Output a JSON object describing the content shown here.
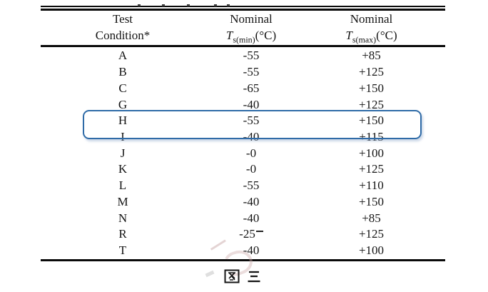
{
  "table": {
    "header": {
      "col1": {
        "line1": "Test",
        "line2": "Condition*"
      },
      "col2": {
        "line1": "Nominal",
        "symbol": "T",
        "subscript": "s(min)",
        "unit": "(°C)"
      },
      "col3": {
        "line1": "Nominal",
        "symbol": "T",
        "subscript": "s(max)",
        "unit": "(°C)"
      }
    },
    "rows": [
      {
        "condition": "A",
        "min": "-55",
        "max": "+85"
      },
      {
        "condition": "B",
        "min": "-55",
        "max": "+125"
      },
      {
        "condition": "C",
        "min": "-65",
        "max": "+150"
      },
      {
        "condition": "G",
        "min": "-40",
        "max": "+125"
      },
      {
        "condition": "H",
        "min": "-55",
        "max": "+150",
        "highlighted": true
      },
      {
        "condition": "I",
        "min": "-40",
        "max": "+115"
      },
      {
        "condition": "J",
        "min": "-0",
        "max": "+100"
      },
      {
        "condition": "K",
        "min": "-0",
        "max": "+125"
      },
      {
        "condition": "L",
        "min": "-55",
        "max": "+110"
      },
      {
        "condition": "M",
        "min": "-40",
        "max": "+150"
      },
      {
        "condition": "N",
        "min": "-40",
        "max": "+85"
      },
      {
        "condition": "R",
        "min": "-25",
        "max": "+125",
        "min_artifact": true
      },
      {
        "condition": "T",
        "min": "-40",
        "max": "+100"
      }
    ],
    "highlighted_condition": "H"
  },
  "caption": {
    "text": "图 三"
  },
  "colors": {
    "highlight_border": "#2f6ba7",
    "text": "#141414",
    "rule": "#0a0a0a",
    "background": "#ffffff"
  }
}
